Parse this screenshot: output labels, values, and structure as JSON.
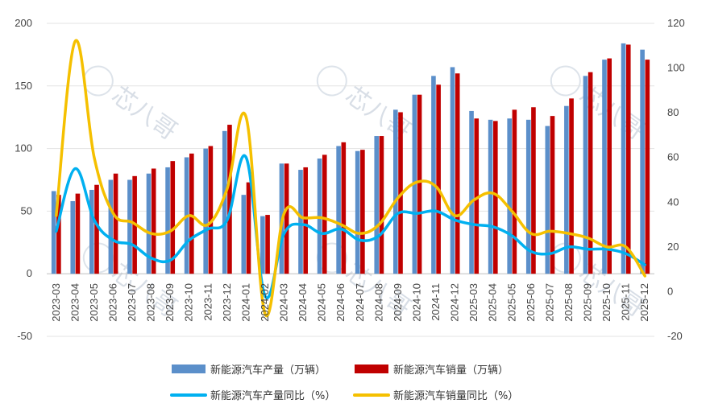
{
  "chart_data": {
    "type": "bar",
    "categories": [
      "2023-03",
      "2023-04",
      "2023-05",
      "2023-06",
      "2023-07",
      "2023-08",
      "2023-09",
      "2023-10",
      "2023-11",
      "2023-12",
      "2024-01",
      "2024-02",
      "2024-03",
      "2024-04",
      "2024-05",
      "2024-06",
      "2024-07",
      "2024-08",
      "2024-09",
      "2024-10",
      "2024-11",
      "2024-12",
      "2025-03",
      "2025-04",
      "2025-05",
      "2025-06",
      "2025-07",
      "2025-08",
      "2025-09",
      "2025-10",
      "2025-11",
      "2025-12"
    ],
    "left_axis": {
      "ylim": [
        -50,
        200
      ],
      "ticks": [
        -50,
        0,
        50,
        100,
        150,
        200
      ]
    },
    "right_axis": {
      "ylim": [
        -20,
        120
      ],
      "ticks": [
        -20,
        0,
        20,
        40,
        60,
        80,
        100,
        120
      ]
    },
    "series": [
      {
        "name": "新能源汽车产量（万辆）",
        "type": "bar",
        "axis": "left",
        "color": "#5b8fca",
        "values": [
          66,
          58,
          67,
          75,
          75,
          80,
          85,
          93,
          100,
          114,
          63,
          46,
          88,
          83,
          92,
          102,
          98,
          110,
          131,
          143,
          158,
          165,
          130,
          123,
          124,
          123,
          118,
          134,
          158,
          171,
          184,
          179
        ]
      },
      {
        "name": "新能源汽车销量（万辆）",
        "type": "bar",
        "axis": "left",
        "color": "#c00000",
        "values": [
          63,
          64,
          71,
          80,
          78,
          84,
          90,
          96,
          102,
          119,
          73,
          47,
          88,
          85,
          95,
          105,
          99,
          110,
          129,
          143,
          151,
          160,
          124,
          122,
          131,
          133,
          126,
          140,
          161,
          172,
          183,
          171
        ]
      },
      {
        "name": "新能源汽车产量同比（%）",
        "type": "line",
        "axis": "right",
        "color": "#00b0f0",
        "values": [
          27,
          55,
          32,
          23,
          21,
          15,
          14,
          23,
          28,
          32,
          60,
          -2,
          26,
          30,
          26,
          28,
          23,
          25,
          35,
          35,
          36,
          32,
          30,
          29,
          25,
          18,
          17,
          20,
          19,
          19,
          17,
          12
        ]
      },
      {
        "name": "新能源汽车销量同比（%）",
        "type": "line",
        "axis": "right",
        "color": "#f5c000",
        "values": [
          34,
          112,
          60,
          35,
          31,
          26,
          27,
          34,
          30,
          46,
          78,
          -10,
          35,
          33,
          33,
          30,
          26,
          30,
          42,
          49,
          47,
          34,
          41,
          44,
          36,
          26,
          27,
          26,
          24,
          20,
          20,
          7
        ]
      }
    ],
    "legend": {
      "placement": "bottom",
      "row1": [
        "新能源汽车产量（万辆）",
        "新能源汽车销量（万辆）"
      ],
      "row2": [
        "新能源汽车产量同比（%）",
        "新能源汽车销量同比（%）"
      ]
    },
    "grid": "horizontal",
    "watermark_text": "芯八哥"
  }
}
